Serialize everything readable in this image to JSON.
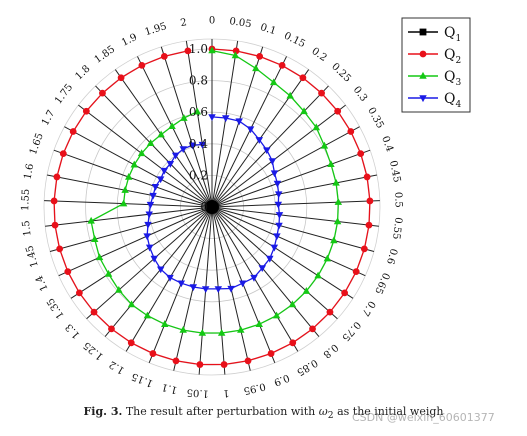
{
  "chart_data": {
    "type": "radar",
    "categories": [
      "0",
      "0.05",
      "0.1",
      "0.15",
      "0.2",
      "0.25",
      "0.3",
      "0.35",
      "0.4",
      "0.45",
      "0.5",
      "0.55",
      "0.6",
      "0.65",
      "0.7",
      "0.75",
      "0.8",
      "0.85",
      "0.9",
      "0.95",
      "1",
      "1.05",
      "1.1",
      "1.15",
      "1.2",
      "1.25",
      "1.3",
      "1.35",
      "1.4",
      "1.45",
      "1.5",
      "1.55",
      "1.6",
      "1.65",
      "1.7",
      "1.75",
      "1.8",
      "1.85",
      "1.9",
      "1.95",
      "2"
    ],
    "radial_ticks": [
      "0",
      "0.2",
      "0.4",
      "0.6",
      "0.8",
      "1.0"
    ],
    "rlim": [
      0,
      1.0
    ],
    "legend_position": "top-right",
    "series": [
      {
        "name": "Q",
        "subscript": "1",
        "color": "#000000",
        "marker": "square",
        "values": [
          0,
          0,
          0,
          0,
          0,
          0,
          0,
          0,
          0,
          0,
          0,
          0,
          0,
          0,
          0,
          0,
          0,
          0,
          0,
          0,
          0,
          0,
          0,
          0,
          0,
          0,
          0,
          0,
          0,
          0,
          0,
          0,
          0,
          0,
          0,
          0,
          0,
          0,
          0,
          0,
          0
        ]
      },
      {
        "name": "Q",
        "subscript": "2",
        "color": "#e8101a",
        "marker": "circle",
        "values": [
          1.0,
          1.0,
          1.0,
          1.0,
          1.0,
          1.0,
          1.0,
          1.0,
          1.0,
          1.0,
          1.0,
          1.0,
          1.0,
          1.0,
          1.0,
          1.0,
          1.0,
          1.0,
          1.0,
          1.0,
          1.0,
          1.0,
          1.0,
          1.0,
          1.0,
          1.0,
          1.0,
          1.0,
          1.0,
          1.0,
          1.0,
          1.0,
          1.0,
          1.0,
          1.0,
          1.0,
          1.0,
          1.0,
          1.0,
          1.0,
          1.0
        ]
      },
      {
        "name": "Q",
        "subscript": "3",
        "color": "#14c814",
        "marker": "triangle-up",
        "values": [
          0.99,
          0.97,
          0.92,
          0.88,
          0.86,
          0.84,
          0.83,
          0.81,
          0.8,
          0.8,
          0.8,
          0.8,
          0.8,
          0.8,
          0.8,
          0.8,
          0.8,
          0.8,
          0.8,
          0.8,
          0.8,
          0.8,
          0.8,
          0.8,
          0.8,
          0.8,
          0.79,
          0.78,
          0.78,
          0.77,
          0.77,
          0.56,
          0.56,
          0.56,
          0.56,
          0.56,
          0.56,
          0.56,
          0.57,
          0.59,
          0.61
        ]
      },
      {
        "name": "Q",
        "subscript": "4",
        "color": "#1a1ae6",
        "marker": "triangle-down",
        "values": [
          0.57,
          0.57,
          0.57,
          0.55,
          0.52,
          0.5,
          0.48,
          0.45,
          0.44,
          0.43,
          0.42,
          0.43,
          0.44,
          0.45,
          0.47,
          0.49,
          0.5,
          0.52,
          0.52,
          0.53,
          0.52,
          0.52,
          0.52,
          0.52,
          0.52,
          0.51,
          0.49,
          0.47,
          0.45,
          0.42,
          0.4,
          0.39,
          0.38,
          0.38,
          0.37,
          0.38,
          0.38,
          0.4,
          0.41,
          0.41,
          0.4
        ]
      }
    ]
  },
  "caption": {
    "label": "Fig. 3.",
    "text_before": "The result after perturbation with",
    "omega": "ω",
    "omega_sub": "2",
    "text_after": "as the initial weigh"
  },
  "watermark": "CSDN @weixin_60601377"
}
